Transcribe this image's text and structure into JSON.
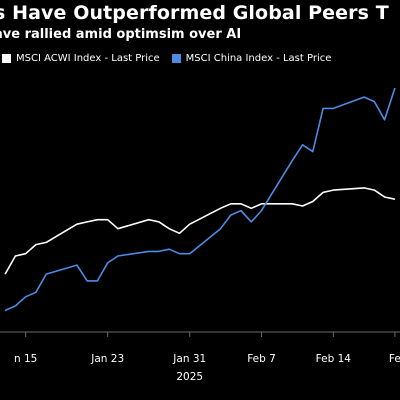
{
  "header": {
    "title": "s Have Outperformed Global Peers T",
    "subtitle": "ave rallied amid optimsim over AI"
  },
  "chart_data": {
    "type": "line",
    "grid": false,
    "legend_placement": "top-left",
    "xlim": [
      12.5,
      51.5
    ],
    "ylim": [
      0,
      100
    ],
    "x_ticks": [
      {
        "x": 15,
        "label": "n 15"
      },
      {
        "x": 23,
        "label": "Jan 23"
      },
      {
        "x": 31,
        "label": "Jan 31"
      },
      {
        "x": 38,
        "label": "Feb 7"
      },
      {
        "x": 45,
        "label": "Feb 14"
      },
      {
        "x": 51,
        "label": "Fe"
      }
    ],
    "x_sublabel": {
      "x": 31,
      "label": "2025"
    },
    "series": [
      {
        "name": "MSCI ACWI Index - Last Price",
        "color": "#ffffff",
        "x": [
          13,
          14,
          15,
          16,
          17,
          20,
          21,
          22,
          23,
          24,
          27,
          28,
          29,
          30,
          31,
          34,
          35,
          36,
          37,
          38,
          41,
          42,
          43,
          44,
          45,
          48,
          49,
          50,
          51
        ],
        "y": [
          18,
          26,
          27,
          31,
          32,
          40,
          41,
          42,
          42,
          38,
          42,
          41,
          38,
          36,
          40,
          47,
          49,
          49,
          47,
          49,
          49,
          48,
          50,
          54,
          55,
          56,
          55,
          52,
          51
        ]
      },
      {
        "name": "MSCI China Index - Last Price",
        "color": "#4e8be3",
        "x": [
          13,
          14,
          15,
          16,
          17,
          20,
          21,
          22,
          23,
          24,
          27,
          28,
          29,
          30,
          31,
          34,
          35,
          36,
          37,
          38,
          41,
          42,
          43,
          44,
          45,
          48,
          49,
          50,
          51
        ],
        "y": [
          2,
          4,
          8,
          10,
          18,
          22,
          15,
          15,
          23,
          26,
          28,
          28,
          29,
          27,
          27,
          38,
          44,
          46,
          41,
          46,
          68,
          75,
          72,
          91,
          91,
          96,
          94,
          86,
          100
        ]
      }
    ]
  }
}
